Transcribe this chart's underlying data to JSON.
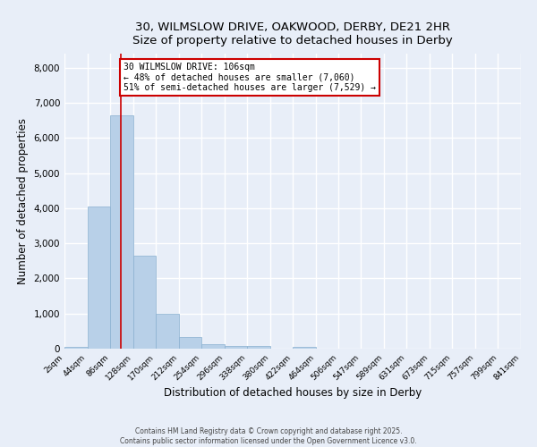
{
  "title_line1": "30, WILMSLOW DRIVE, OAKWOOD, DERBY, DE21 2HR",
  "title_line2": "Size of property relative to detached houses in Derby",
  "xlabel": "Distribution of detached houses by size in Derby",
  "ylabel": "Number of detached properties",
  "bar_color": "#b8d0e8",
  "bar_edge_color": "#8ab0d0",
  "bg_color": "#e8eef8",
  "fig_bg_color": "#e8eef8",
  "grid_color": "#ffffff",
  "red_line_x": 106,
  "red_line_color": "#cc0000",
  "annotation_line1": "30 WILMSLOW DRIVE: 106sqm",
  "annotation_line2": "← 48% of detached houses are smaller (7,060)",
  "annotation_line3": "51% of semi-detached houses are larger (7,529) →",
  "annotation_box_color": "#ffffff",
  "annotation_box_edge": "#cc0000",
  "bin_edges": [
    2,
    44,
    86,
    128,
    170,
    212,
    254,
    296,
    338,
    380,
    422,
    464,
    506,
    547,
    589,
    631,
    673,
    715,
    757,
    799,
    841
  ],
  "bar_heights": [
    50,
    4050,
    6650,
    2650,
    1000,
    330,
    120,
    80,
    70,
    0,
    60,
    0,
    0,
    0,
    0,
    0,
    0,
    0,
    0,
    0
  ],
  "ylim": [
    0,
    8400
  ],
  "yticks": [
    0,
    1000,
    2000,
    3000,
    4000,
    5000,
    6000,
    7000,
    8000
  ],
  "tick_labels": [
    "2sqm",
    "44sqm",
    "86sqm",
    "128sqm",
    "170sqm",
    "212sqm",
    "254sqm",
    "296sqm",
    "338sqm",
    "380sqm",
    "422sqm",
    "464sqm",
    "506sqm",
    "547sqm",
    "589sqm",
    "631sqm",
    "673sqm",
    "715sqm",
    "757sqm",
    "799sqm",
    "841sqm"
  ],
  "footnote1": "Contains HM Land Registry data © Crown copyright and database right 2025.",
  "footnote2": "Contains public sector information licensed under the Open Government Licence v3.0."
}
